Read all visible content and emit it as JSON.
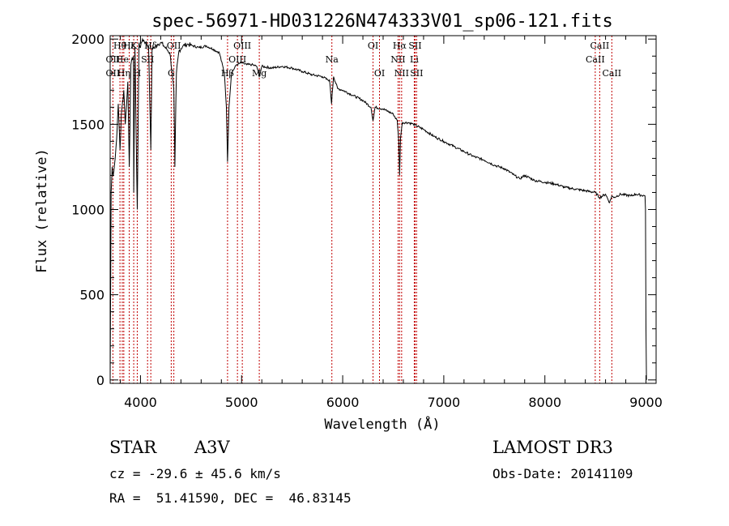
{
  "chart_data": {
    "type": "line",
    "title": "spec-56971-HD031226N474333V01_sp06-121.fits",
    "xlabel": "Wavelength (Å)",
    "ylabel": "Flux (relative)",
    "xlim": [
      3700,
      9100
    ],
    "ylim": [
      -20,
      2020
    ],
    "xticks": [
      4000,
      5000,
      6000,
      7000,
      8000,
      9000
    ],
    "yticks": [
      0,
      500,
      1000,
      1500,
      2000
    ],
    "grid": false,
    "series": [
      {
        "name": "flux",
        "x": [
          3700,
          3710,
          3720,
          3730,
          3750,
          3770,
          3780,
          3798,
          3810,
          3835,
          3850,
          3875,
          3889,
          3905,
          3930,
          3933,
          3945,
          3968,
          3985,
          4000,
          4020,
          4050,
          4080,
          4102,
          4115,
          4140,
          4170,
          4200,
          4230,
          4260,
          4290,
          4310,
          4330,
          4340,
          4355,
          4380,
          4420,
          4470,
          4520,
          4580,
          4650,
          4720,
          4780,
          4830,
          4850,
          4861,
          4875,
          4900,
          4950,
          5000,
          5050,
          5100,
          5150,
          5175,
          5200,
          5300,
          5400,
          5500,
          5600,
          5700,
          5800,
          5850,
          5870,
          5890,
          5896,
          5910,
          5950,
          6000,
          6100,
          6200,
          6280,
          6300,
          6320,
          6400,
          6500,
          6540,
          6555,
          6563,
          6572,
          6590,
          6650,
          6700,
          6800,
          6900,
          7000,
          7100,
          7200,
          7300,
          7400,
          7500,
          7600,
          7700,
          7750,
          7800,
          7900,
          8000,
          8100,
          8200,
          8300,
          8400,
          8500,
          8540,
          8600,
          8640,
          8662,
          8680,
          8750,
          8850,
          8900,
          8990,
          8995,
          9000,
          9005
        ],
        "y": [
          0,
          1100,
          1250,
          1200,
          1300,
          1480,
          1620,
          1350,
          1550,
          1700,
          1500,
          1750,
          1250,
          1850,
          1900,
          1100,
          1950,
          1000,
          1980,
          1950,
          2000,
          1980,
          1960,
          1350,
          1950,
          1950,
          1970,
          1980,
          1960,
          1940,
          1920,
          1820,
          1700,
          1250,
          1800,
          1930,
          1960,
          1970,
          1960,
          1950,
          1960,
          1940,
          1920,
          1800,
          1600,
          1280,
          1600,
          1800,
          1850,
          1860,
          1850,
          1850,
          1840,
          1780,
          1840,
          1830,
          1840,
          1830,
          1810,
          1790,
          1780,
          1760,
          1760,
          1620,
          1680,
          1780,
          1710,
          1700,
          1670,
          1640,
          1600,
          1520,
          1600,
          1590,
          1560,
          1520,
          1400,
          1200,
          1420,
          1510,
          1510,
          1500,
          1470,
          1430,
          1400,
          1370,
          1340,
          1310,
          1290,
          1260,
          1240,
          1200,
          1180,
          1200,
          1170,
          1160,
          1150,
          1130,
          1120,
          1110,
          1100,
          1070,
          1090,
          1040,
          1080,
          1070,
          1090,
          1080,
          1090,
          1080,
          1000,
          300,
          0
        ]
      }
    ],
    "line_labels": [
      {
        "name": "Hθ",
        "x": 3797,
        "row": 1
      },
      {
        "name": "Hε",
        "x": 3889,
        "row": 1
      },
      {
        "name": "K",
        "x": 3933,
        "row": 1
      },
      {
        "name": "Hδ",
        "x": 4102,
        "row": 1
      },
      {
        "name": "OII",
        "x": 4330,
        "row": 1
      },
      {
        "name": "OIII",
        "x": 5007,
        "row": 1
      },
      {
        "name": "OI",
        "x": 6300,
        "row": 1
      },
      {
        "name": "Hα",
        "x": 6563,
        "row": 1
      },
      {
        "name": "SII",
        "x": 6716,
        "row": 1
      },
      {
        "name": "CaII",
        "x": 8542,
        "row": 1
      },
      {
        "name": "OII",
        "x": 3727,
        "row": 2
      },
      {
        "name": "He",
        "x": 3820,
        "row": 2
      },
      {
        "name": "SII",
        "x": 4070,
        "row": 2
      },
      {
        "name": "OIII",
        "x": 4959,
        "row": 2
      },
      {
        "name": "Na",
        "x": 5893,
        "row": 2
      },
      {
        "name": "NII",
        "x": 6548,
        "row": 2
      },
      {
        "name": "Li",
        "x": 6708,
        "row": 2
      },
      {
        "name": "CaII",
        "x": 8498,
        "row": 2
      },
      {
        "name": "OII",
        "x": 3727,
        "row": 3
      },
      {
        "name": "Hη",
        "x": 3835,
        "row": 3
      },
      {
        "name": "H",
        "x": 3968,
        "row": 3
      },
      {
        "name": "G",
        "x": 4304,
        "row": 3
      },
      {
        "name": "Hβ",
        "x": 4861,
        "row": 3
      },
      {
        "name": "Mg",
        "x": 5175,
        "row": 3
      },
      {
        "name": "OI",
        "x": 6364,
        "row": 3
      },
      {
        "name": "NII",
        "x": 6583,
        "row": 3
      },
      {
        "name": "SII",
        "x": 6731,
        "row": 3
      },
      {
        "name": "CaII",
        "x": 8662,
        "row": 3
      }
    ]
  },
  "info": {
    "type_label": "STAR",
    "subclass": "A3V",
    "survey": "LAMOST DR3",
    "redshift": "cz = -29.6 ± 45.6 km/s",
    "obs_date": "Obs-Date: 20141109",
    "coords": "RA =  51.41590, DEC =  46.83145"
  }
}
